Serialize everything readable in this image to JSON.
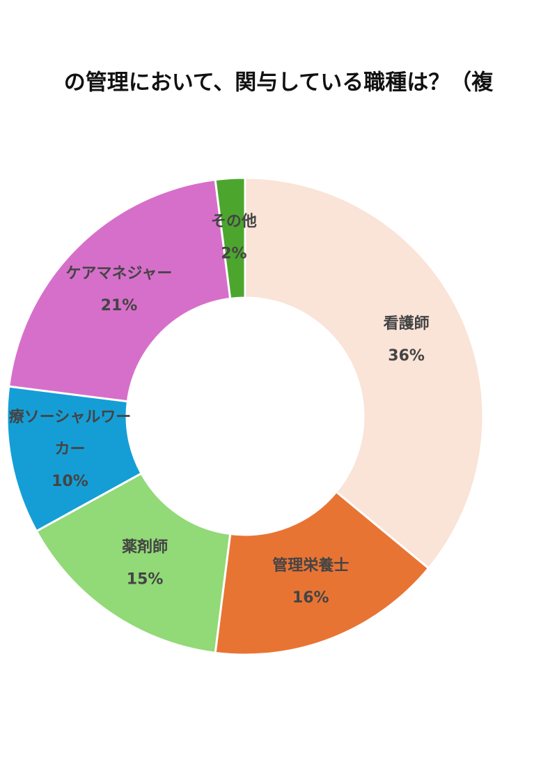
{
  "chart_data": {
    "type": "donut",
    "title": "の管理において、関与している職種は？（複",
    "categories": [
      "看護師",
      "管理栄養士",
      "薬剤師",
      "療ソーシャルワーカー",
      "ケアマネジャー",
      "その他"
    ],
    "values": [
      36,
      16,
      15,
      10,
      21,
      2
    ],
    "value_labels": [
      "36%",
      "16%",
      "15%",
      "10%",
      "21%",
      "2%"
    ],
    "colors": [
      "#fae3d7",
      "#e87434",
      "#92d977",
      "#159ed6",
      "#d66fca",
      "#4ca62e"
    ]
  }
}
